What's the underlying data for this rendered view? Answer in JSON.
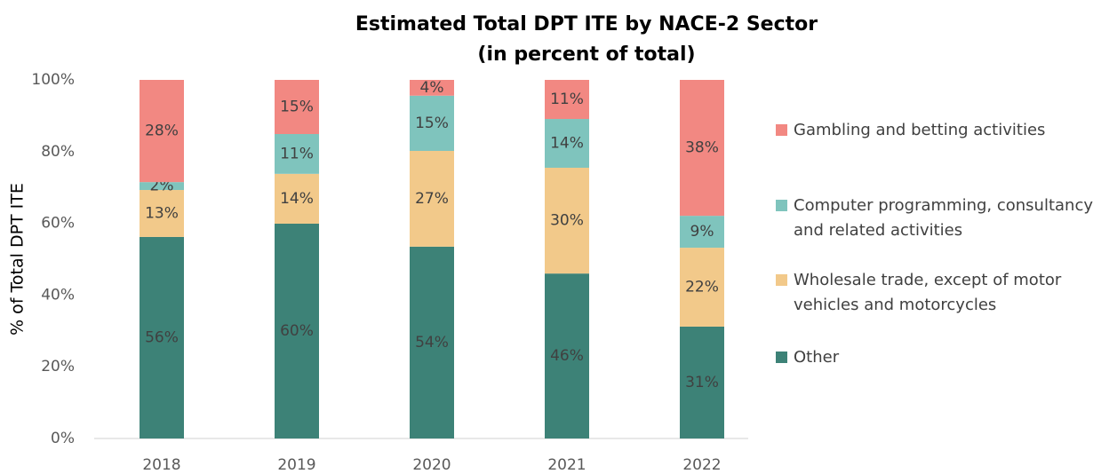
{
  "chart_data": {
    "type": "stacked_bar",
    "title": "Estimated Total DPT ITE by NACE-2 Sector",
    "subtitle": "(in percent of total)",
    "y_label": "% of Total DPT ITE",
    "categories": [
      "2018",
      "2019",
      "2020",
      "2021",
      "2022"
    ],
    "series": [
      {
        "name": "Other",
        "color": "#3d8277",
        "values": [
          56.2,
          59.9,
          53.5,
          46.0,
          31.2
        ],
        "value_labels": [
          "56%",
          "60%",
          "54%",
          "46%",
          "31%"
        ]
      },
      {
        "name": "Wholesale trade, except of motor vehicles and motorcycles",
        "color": "#f2c98a",
        "values": [
          13.1,
          13.9,
          26.7,
          29.5,
          22.0
        ],
        "value_labels": [
          "13%",
          "14%",
          "27%",
          "30%",
          "22%"
        ]
      },
      {
        "name": "Computer programming, consultancy and related activities",
        "color": "#7fc4bd",
        "values": [
          2.2,
          11.1,
          15.4,
          13.6,
          8.9
        ],
        "value_labels": [
          "2%",
          "11%",
          "15%",
          "14%",
          "9%"
        ]
      },
      {
        "name": "Gambling and betting activities",
        "color": "#f28882",
        "values": [
          28.5,
          15.1,
          4.4,
          10.9,
          37.9
        ],
        "value_labels": [
          "28%",
          "15%",
          "4%",
          "11%",
          "38%"
        ]
      }
    ],
    "ylim": [
      0,
      100
    ],
    "yticks": [
      {
        "value": 0,
        "label": "0%"
      },
      {
        "value": 20,
        "label": "20%"
      },
      {
        "value": 40,
        "label": "40%"
      },
      {
        "value": 60,
        "label": "60%"
      },
      {
        "value": 80,
        "label": "80%"
      },
      {
        "value": 100,
        "label": "100%"
      }
    ],
    "legend": "right"
  }
}
